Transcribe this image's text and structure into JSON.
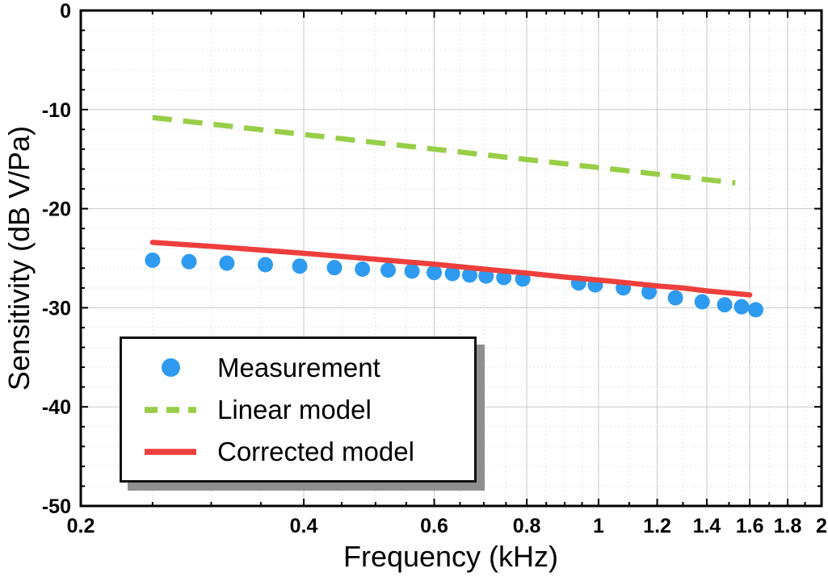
{
  "chart_data": {
    "type": "scatter",
    "title": "",
    "xlabel": "Frequency (kHz)",
    "ylabel": "Sensitivity (dB V/Pa)",
    "x_scale": "log",
    "xlim": [
      0.2,
      2
    ],
    "ylim": [
      -50,
      0
    ],
    "x_ticks": [
      0.2,
      0.4,
      0.6,
      0.8,
      1,
      1.2,
      1.4,
      1.6,
      1.8,
      2
    ],
    "x_tick_labels": [
      "0.2",
      "0.4",
      "0.6",
      "0.8",
      "1",
      "1.2",
      "1.4",
      "1.6",
      "1.8",
      "2"
    ],
    "x_minor_ticks": [
      0.25,
      0.3,
      0.35,
      0.45,
      0.5,
      0.55,
      0.65,
      0.7,
      0.75,
      0.85,
      0.9,
      0.95,
      1.1,
      1.3,
      1.5,
      1.7,
      1.9
    ],
    "y_ticks": [
      0,
      -10,
      -20,
      -30,
      -40,
      -50
    ],
    "y_tick_labels": [
      "0",
      "-10",
      "-20",
      "-30",
      "-40",
      "-50"
    ],
    "y_minor_step": 2,
    "grid": true,
    "grid_major_color": "#c9c9c9",
    "grid_minor_color": "#e3e3e3",
    "frame_color": "#000000",
    "legend_position": "lower left",
    "series": [
      {
        "name": "Measurement",
        "type": "scatter",
        "marker": "circle",
        "color": "#2e9bf0",
        "x": [
          0.25,
          0.28,
          0.315,
          0.355,
          0.395,
          0.44,
          0.48,
          0.52,
          0.56,
          0.6,
          0.635,
          0.67,
          0.705,
          0.745,
          0.79,
          0.94,
          0.99,
          1.08,
          1.17,
          1.27,
          1.38,
          1.48,
          1.56,
          1.63
        ],
        "y": [
          -25.2,
          -25.35,
          -25.5,
          -25.65,
          -25.8,
          -25.95,
          -26.1,
          -26.2,
          -26.3,
          -26.45,
          -26.55,
          -26.7,
          -26.8,
          -26.95,
          -27.1,
          -27.5,
          -27.7,
          -28.0,
          -28.4,
          -29.0,
          -29.4,
          -29.7,
          -29.9,
          -30.2
        ]
      },
      {
        "name": "Linear model",
        "type": "line",
        "style": "dashed",
        "color": "#97ce47",
        "x": [
          0.25,
          1.53
        ],
        "y": [
          -10.8,
          -17.4
        ]
      },
      {
        "name": "Corrected model",
        "type": "line",
        "style": "solid",
        "color": "#ee3f3c",
        "x": [
          0.25,
          0.3,
          0.4,
          0.5,
          0.6,
          0.7,
          0.8,
          0.9,
          1.0,
          1.1,
          1.2,
          1.3,
          1.4,
          1.5,
          1.6
        ],
        "y": [
          -23.4,
          -23.8,
          -24.5,
          -25.1,
          -25.6,
          -26.1,
          -26.5,
          -26.9,
          -27.2,
          -27.5,
          -27.8,
          -28.0,
          -28.3,
          -28.5,
          -28.7
        ]
      }
    ]
  }
}
